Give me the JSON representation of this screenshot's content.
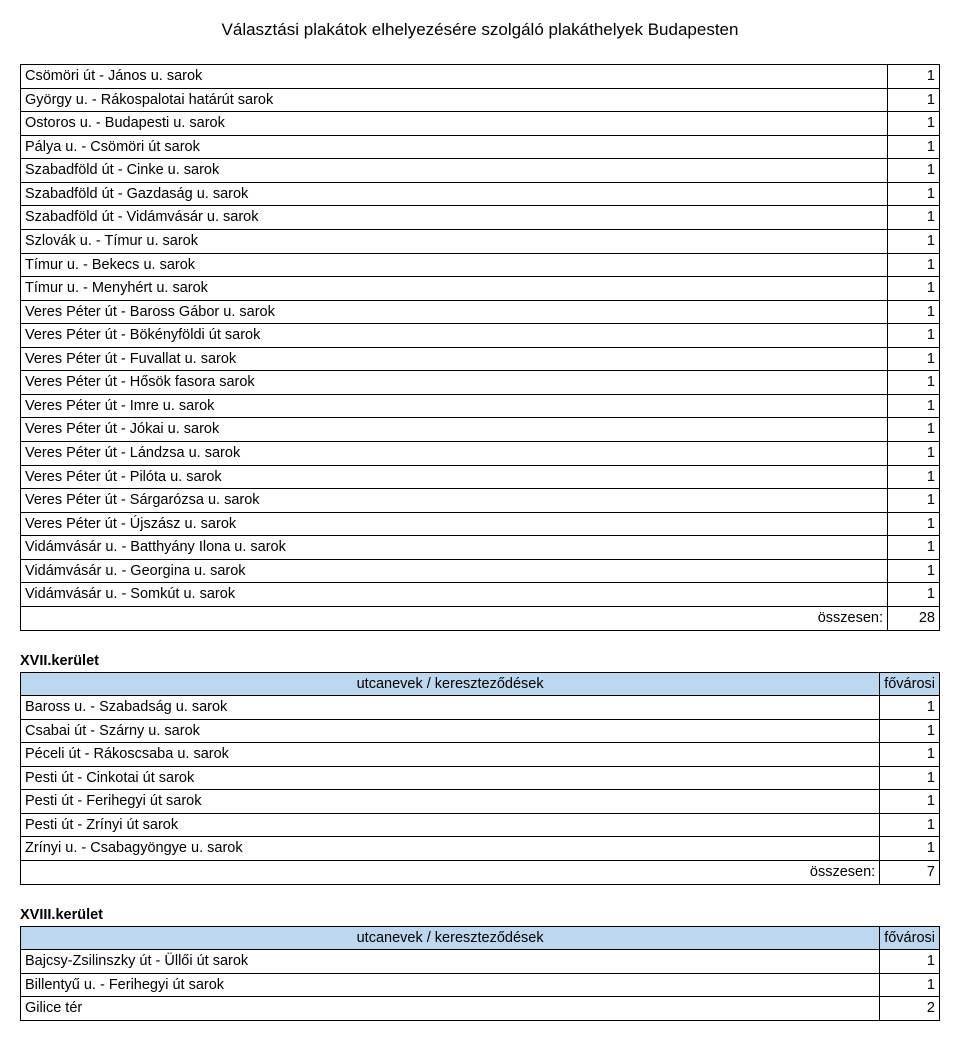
{
  "title": "Választási plakátok elhelyezésére szolgáló plakáthelyek Budapesten",
  "table1": {
    "rows": [
      {
        "label": "Csömöri út - János u. sarok",
        "value": "1"
      },
      {
        "label": "György u. - Rákospalotai határút sarok",
        "value": "1"
      },
      {
        "label": "Ostoros u. - Budapesti u. sarok",
        "value": "1"
      },
      {
        "label": "Pálya u. - Csömöri út sarok",
        "value": "1"
      },
      {
        "label": "Szabadföld út - Cinke u. sarok",
        "value": "1"
      },
      {
        "label": "Szabadföld út - Gazdaság u. sarok",
        "value": "1"
      },
      {
        "label": "Szabadföld út - Vidámvásár u. sarok",
        "value": "1"
      },
      {
        "label": "Szlovák u. - Tímur u. sarok",
        "value": "1"
      },
      {
        "label": "Tímur u. - Bekecs u. sarok",
        "value": "1"
      },
      {
        "label": "Tímur u. - Menyhért u. sarok",
        "value": "1"
      },
      {
        "label": "Veres Péter út - Baross Gábor u. sarok",
        "value": "1"
      },
      {
        "label": "Veres Péter út - Bökényföldi út sarok",
        "value": "1"
      },
      {
        "label": "Veres Péter út - Fuvallat u. sarok",
        "value": "1"
      },
      {
        "label": "Veres Péter út - Hősök fasora sarok",
        "value": "1"
      },
      {
        "label": "Veres Péter út - Imre u. sarok",
        "value": "1"
      },
      {
        "label": "Veres Péter út - Jókai u. sarok",
        "value": "1"
      },
      {
        "label": "Veres Péter út - Lándzsa u. sarok",
        "value": "1"
      },
      {
        "label": "Veres Péter út - Pilóta u. sarok",
        "value": "1"
      },
      {
        "label": "Veres Péter út - Sárgarózsa u. sarok",
        "value": "1"
      },
      {
        "label": "Veres Péter út - Újszász u. sarok",
        "value": "1"
      },
      {
        "label": "Vidámvásár u. - Batthyány Ilona u. sarok",
        "value": "1"
      },
      {
        "label": "Vidámvásár u. - Georgina u. sarok",
        "value": "1"
      },
      {
        "label": "Vidámvásár u. - Somkút u. sarok",
        "value": "1"
      }
    ],
    "total_label": "összesen:",
    "total_value": "28"
  },
  "section2": {
    "heading": "XVII.kerület",
    "header_left": "utcanevek / kereszteződések",
    "header_right": "fővárosi",
    "rows": [
      {
        "label": "Baross u. - Szabadság u. sarok",
        "value": "1"
      },
      {
        "label": "Csabai út - Szárny u. sarok",
        "value": "1"
      },
      {
        "label": "Péceli út - Rákoscsaba u. sarok",
        "value": "1"
      },
      {
        "label": "Pesti út - Cinkotai út sarok",
        "value": "1"
      },
      {
        "label": "Pesti út - Ferihegyi út sarok",
        "value": "1"
      },
      {
        "label": "Pesti út - Zrínyi út sarok",
        "value": "1"
      },
      {
        "label": "Zrínyi u. - Csabagyöngye u. sarok",
        "value": "1"
      }
    ],
    "total_label": "összesen:",
    "total_value": "7"
  },
  "section3": {
    "heading": "XVIII.kerület",
    "header_left": "utcanevek / kereszteződések",
    "header_right": "fővárosi",
    "rows": [
      {
        "label": "Bajcsy-Zsilinszky út - Üllői út sarok",
        "value": "1"
      },
      {
        "label": "Billentyű u. - Ferihegyi út sarok",
        "value": "1"
      },
      {
        "label": "Gilice tér",
        "value": "2"
      }
    ]
  },
  "colors": {
    "header_bg": "#bdd7ee",
    "border": "#000000",
    "text": "#000000",
    "background": "#ffffff"
  }
}
